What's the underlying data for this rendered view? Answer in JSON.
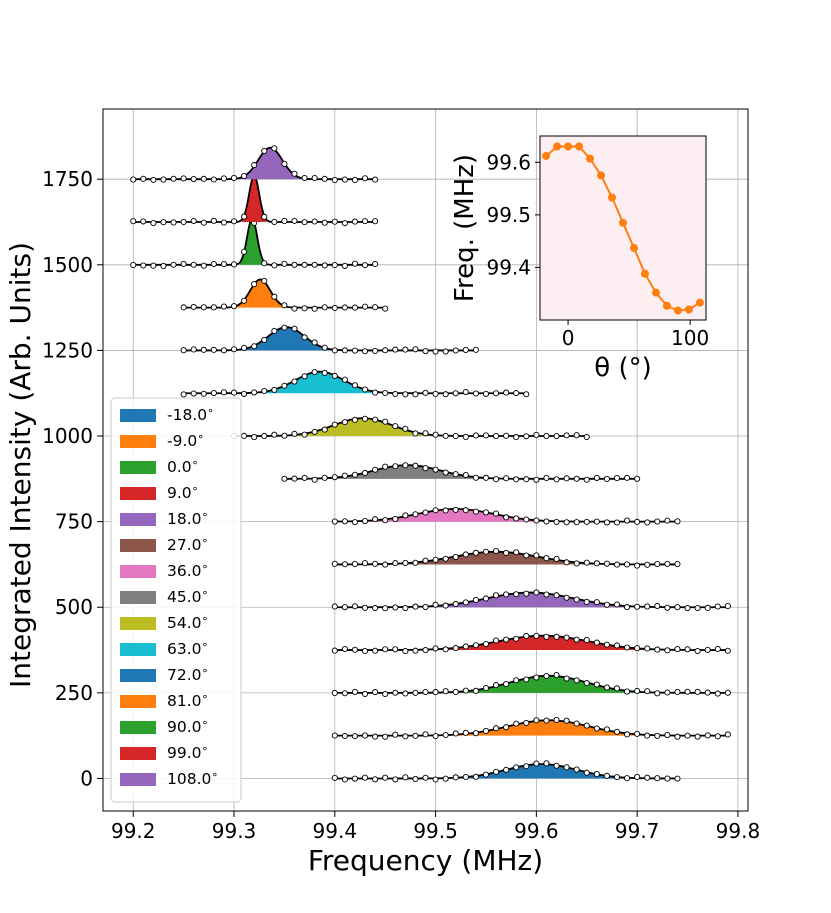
{
  "chart_data": [
    {
      "type": "line",
      "description": "Stacked peaks: integrated intensity vs frequency, each trace offset and shaded, with fitted black curve and open-circle data points",
      "xlabel": "Frequency (MHz)",
      "ylabel": "Integrated Intensity (Arb. Units)",
      "xlim": [
        99.17,
        99.81
      ],
      "ylim": [
        -95,
        1955
      ],
      "xticks": [
        99.2,
        99.3,
        99.4,
        99.5,
        99.6,
        99.7,
        99.8
      ],
      "xtick_labels": [
        "99.2",
        "99.3",
        "99.4",
        "99.5",
        "99.6",
        "99.7",
        "99.8"
      ],
      "yticks": [
        0,
        250,
        500,
        750,
        1000,
        1250,
        1500,
        1750
      ],
      "ytick_labels": [
        "0",
        "250",
        "500",
        "750",
        "1000",
        "1250",
        "1500",
        "1750"
      ],
      "grid": true,
      "legend_position": "lower-left",
      "series": [
        {
          "name": "-18.0$^\\circ$",
          "legend_label": "-18.0",
          "color": "#1f77b4",
          "offset": 0,
          "center": 99.605,
          "amplitude": 42,
          "sigma": 0.035,
          "x_start": 99.4,
          "x_end": 99.74
        },
        {
          "name": "-9.0$^\\circ$",
          "legend_label": "-9.0",
          "color": "#ff7f0e",
          "offset": 125,
          "center": 99.612,
          "amplitude": 45,
          "sigma": 0.04,
          "x_start": 99.4,
          "x_end": 99.79
        },
        {
          "name": "0.0$^\\circ$",
          "legend_label": "0.0",
          "color": "#2ca02c",
          "offset": 250,
          "center": 99.612,
          "amplitude": 50,
          "sigma": 0.038,
          "x_start": 99.4,
          "x_end": 99.79
        },
        {
          "name": "9.0$^\\circ$",
          "legend_label": "9.0",
          "color": "#d62728",
          "offset": 375,
          "center": 99.607,
          "amplitude": 42,
          "sigma": 0.045,
          "x_start": 99.4,
          "x_end": 99.79
        },
        {
          "name": "18.0$^\\circ$",
          "legend_label": "18.0",
          "color": "#9467bd",
          "offset": 500,
          "center": 99.594,
          "amplitude": 43,
          "sigma": 0.043,
          "x_start": 99.4,
          "x_end": 99.79
        },
        {
          "name": "27.0$^\\circ$",
          "legend_label": "27.0",
          "color": "#8c564b",
          "offset": 625,
          "center": 99.56,
          "amplitude": 37,
          "sigma": 0.042,
          "x_start": 99.4,
          "x_end": 99.74
        },
        {
          "name": "36.0$^\\circ$",
          "legend_label": "36.0",
          "color": "#e377c2",
          "offset": 750,
          "center": 99.52,
          "amplitude": 37,
          "sigma": 0.038,
          "x_start": 99.4,
          "x_end": 99.74
        },
        {
          "name": "45.0$^\\circ$",
          "legend_label": "45.0",
          "color": "#7f7f7f",
          "offset": 875,
          "center": 99.472,
          "amplitude": 40,
          "sigma": 0.033,
          "x_start": 99.35,
          "x_end": 99.7
        },
        {
          "name": "54.0$^\\circ$",
          "legend_label": "54.0",
          "color": "#bcbd22",
          "offset": 1000,
          "center": 99.428,
          "amplitude": 52,
          "sigma": 0.029,
          "x_start": 99.3,
          "x_end": 99.65
        },
        {
          "name": "63.0$^\\circ$",
          "legend_label": "63.0",
          "color": "#17becf",
          "offset": 1125,
          "center": 99.385,
          "amplitude": 63,
          "sigma": 0.024,
          "x_start": 99.25,
          "x_end": 99.59
        },
        {
          "name": "72.0$^\\circ$",
          "legend_label": "72.0",
          "color": "#1f77b4",
          "offset": 1250,
          "center": 99.352,
          "amplitude": 68,
          "sigma": 0.018,
          "x_start": 99.25,
          "x_end": 99.54
        },
        {
          "name": "81.0$^\\circ$",
          "legend_label": "81.0",
          "color": "#ff7f0e",
          "offset": 1375,
          "center": 99.326,
          "amplitude": 82,
          "sigma": 0.01,
          "x_start": 99.25,
          "x_end": 99.45
        },
        {
          "name": "90.0$^\\circ$",
          "legend_label": "90.0",
          "color": "#2ca02c",
          "offset": 1500,
          "center": 99.318,
          "amplitude": 135,
          "sigma": 0.005,
          "x_start": 99.2,
          "x_end": 99.44
        },
        {
          "name": "99.0$^\\circ$",
          "legend_label": "99.0",
          "color": "#d62728",
          "offset": 1625,
          "center": 99.32,
          "amplitude": 135,
          "sigma": 0.005,
          "x_start": 99.2,
          "x_end": 99.44
        },
        {
          "name": "108.0$^\\circ$",
          "legend_label": "108.0",
          "color": "#9467bd",
          "offset": 1750,
          "center": 99.336,
          "amplitude": 92,
          "sigma": 0.012,
          "x_start": 99.2,
          "x_end": 99.44
        }
      ]
    },
    {
      "type": "line",
      "description": "Inset: fitted peak frequency vs angle",
      "xlabel": "θ (°)",
      "ylabel": "Freq. (MHz)",
      "xlim": [
        -23,
        113
      ],
      "ylim": [
        99.3,
        99.65
      ],
      "xticks": [
        0,
        100
      ],
      "xtick_labels": [
        "0",
        "100"
      ],
      "yticks": [
        99.4,
        99.5,
        99.6
      ],
      "ytick_labels": [
        "99.4",
        "99.5",
        "99.6"
      ],
      "grid": false,
      "background": "#fdeef2",
      "color": "#ff7f0e",
      "x": [
        -18,
        -9,
        0,
        9,
        18,
        27,
        36,
        45,
        54,
        63,
        72,
        81,
        90,
        99,
        108
      ],
      "y": [
        99.612,
        99.63,
        99.63,
        99.63,
        99.607,
        99.575,
        99.533,
        99.485,
        99.437,
        99.388,
        99.352,
        99.327,
        99.318,
        99.32,
        99.333
      ]
    }
  ]
}
